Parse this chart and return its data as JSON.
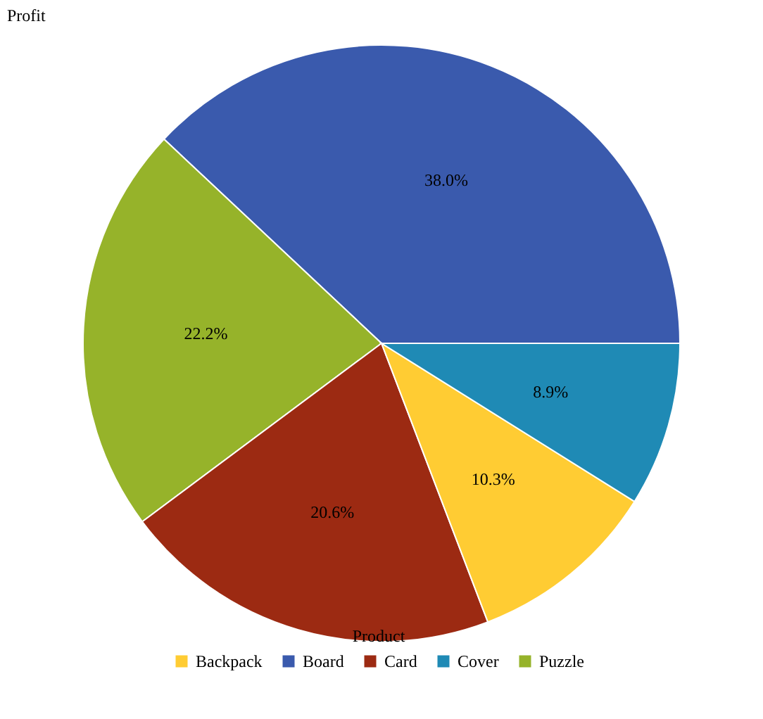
{
  "chart_data": {
    "type": "pie",
    "title": "Profit",
    "legend_title": "Product",
    "legend": "bottom",
    "value_labels": [
      "38.0%",
      "22.2%",
      "20.6%",
      "10.3%",
      "8.9%"
    ],
    "categories": [
      "Board",
      "Puzzle",
      "Card",
      "Backpack",
      "Cover"
    ],
    "values": [
      38.0,
      22.2,
      20.6,
      10.3,
      8.9
    ],
    "colors": [
      "#3a5aad",
      "#96b32a",
      "#9c2a12",
      "#ffcc33",
      "#1f8ab5"
    ]
  }
}
